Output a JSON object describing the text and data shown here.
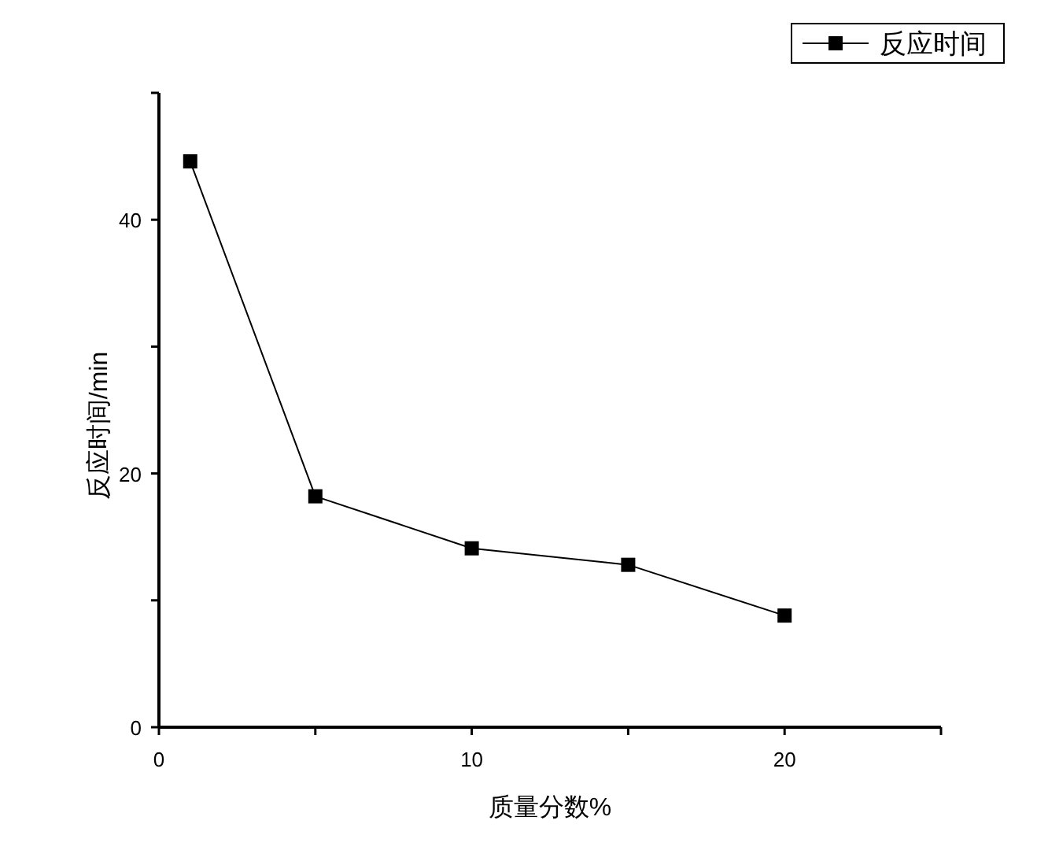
{
  "chart_data": {
    "type": "line",
    "xlabel": "质量分数%",
    "ylabel": "反应时间/min",
    "x": [
      1,
      5,
      10,
      15,
      20
    ],
    "series": [
      {
        "name": "反应时间",
        "color": "#000000",
        "values": [
          44.6,
          18.2,
          14.1,
          12.8,
          8.8
        ]
      }
    ],
    "xlim": [
      0,
      25
    ],
    "ylim": [
      0,
      50
    ],
    "xticks": [
      0,
      {
        "value": 5,
        "label": null
      },
      10,
      {
        "value": 15,
        "label": null
      },
      20,
      {
        "value": 25,
        "label": null
      }
    ],
    "yticks": [
      0,
      {
        "value": 10,
        "label": null
      },
      20,
      {
        "value": 30,
        "label": null
      },
      40,
      {
        "value": 50,
        "label": null
      }
    ],
    "marker": "square",
    "line_style": "solid",
    "legend": "top right"
  }
}
